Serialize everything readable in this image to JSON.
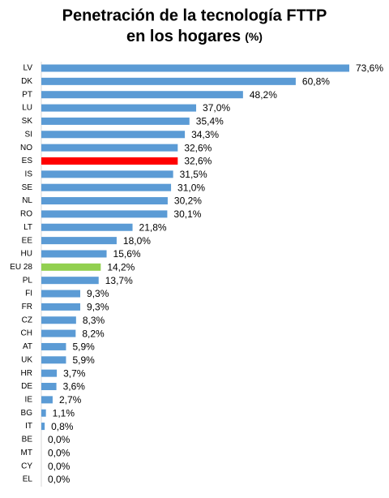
{
  "chart_data": {
    "type": "hbar",
    "title_lines": [
      "Penetración de la tecnología FTTP",
      "en los hogares"
    ],
    "title_unit": "(%)",
    "categories": [
      "LV",
      "DK",
      "PT",
      "LU",
      "SK",
      "SI",
      "NO",
      "ES",
      "IS",
      "SE",
      "NL",
      "RO",
      "LT",
      "EE",
      "HU",
      "EU 28",
      "PL",
      "FI",
      "FR",
      "CZ",
      "CH",
      "AT",
      "UK",
      "HR",
      "DE",
      "IE",
      "BG",
      "IT",
      "BE",
      "MT",
      "CY",
      "EL"
    ],
    "values": [
      73.6,
      60.8,
      48.2,
      37.0,
      35.4,
      34.3,
      32.6,
      32.6,
      31.5,
      31.0,
      30.2,
      30.1,
      21.8,
      18.0,
      15.6,
      14.2,
      13.7,
      9.3,
      9.3,
      8.3,
      8.2,
      5.9,
      5.9,
      3.7,
      3.6,
      2.7,
      1.1,
      0.8,
      0,
      0,
      0,
      0
    ],
    "value_labels": [
      "73,6%",
      "60,8%",
      "48,2%",
      "37,0%",
      "35,4%",
      "34,3%",
      "32,6%",
      "32,6%",
      "31,5%",
      "31,0%",
      "30,2%",
      "30,1%",
      "21,8%",
      "18,0%",
      "15,6%",
      "14,2%",
      "13,7%",
      "9,3%",
      "9,3%",
      "8,3%",
      "8,2%",
      "5,9%",
      "5,9%",
      "3,7%",
      "3,6%",
      "2,7%",
      "1,1%",
      "0,8%",
      "0,0%",
      "0,0%",
      "0,0%",
      "0,0%"
    ],
    "colors": [
      "#5b9bd5",
      "#5b9bd5",
      "#5b9bd5",
      "#5b9bd5",
      "#5b9bd5",
      "#5b9bd5",
      "#5b9bd5",
      "#ff0000",
      "#5b9bd5",
      "#5b9bd5",
      "#5b9bd5",
      "#5b9bd5",
      "#5b9bd5",
      "#5b9bd5",
      "#5b9bd5",
      "#92d050",
      "#5b9bd5",
      "#5b9bd5",
      "#5b9bd5",
      "#5b9bd5",
      "#5b9bd5",
      "#5b9bd5",
      "#5b9bd5",
      "#5b9bd5",
      "#5b9bd5",
      "#5b9bd5",
      "#5b9bd5",
      "#5b9bd5",
      "#5b9bd5",
      "#5b9bd5",
      "#5b9bd5",
      "#5b9bd5"
    ]
  }
}
